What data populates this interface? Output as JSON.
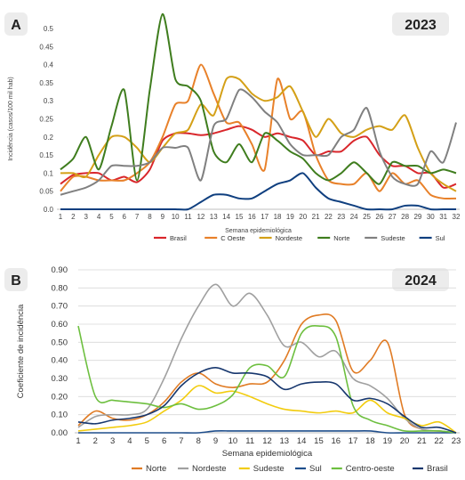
{
  "chart_data": [
    {
      "type": "line",
      "panel": "A",
      "year": "2023",
      "xlabel": "Semana epidemiológica",
      "ylabel": "Incidência (casos/100 mil hab)",
      "x": [
        1,
        2,
        3,
        4,
        5,
        6,
        7,
        8,
        9,
        10,
        11,
        12,
        13,
        14,
        15,
        16,
        17,
        18,
        19,
        20,
        21,
        22,
        23,
        24,
        25,
        26,
        27,
        28,
        29,
        30,
        31,
        32
      ],
      "ylim": [
        0,
        0.5
      ],
      "yticks": [
        "0.0",
        "0.05",
        "0.1",
        "0.15",
        "0.2",
        "0.25",
        "0.3",
        "0.35",
        "0.4",
        "0.45",
        "0.5"
      ],
      "legend_position": "bottom",
      "series": [
        {
          "name": "Brasil",
          "color": "#d9262b",
          "values": [
            0.07,
            0.095,
            0.1,
            0.1,
            0.08,
            0.09,
            0.075,
            0.11,
            0.19,
            0.21,
            0.21,
            0.205,
            0.21,
            0.22,
            0.23,
            0.22,
            0.2,
            0.21,
            0.2,
            0.19,
            0.15,
            0.16,
            0.16,
            0.19,
            0.2,
            0.15,
            0.12,
            0.12,
            0.1,
            0.1,
            0.06,
            0.07
          ]
        },
        {
          "name": "C Oeste",
          "color": "#e8812a",
          "values": [
            0.05,
            0.09,
            0.09,
            0.08,
            0.08,
            0.08,
            0.1,
            0.13,
            0.2,
            0.29,
            0.3,
            0.4,
            0.32,
            0.24,
            0.24,
            0.18,
            0.11,
            0.36,
            0.25,
            0.27,
            0.15,
            0.08,
            0.07,
            0.07,
            0.1,
            0.05,
            0.1,
            0.07,
            0.08,
            0.04,
            0.03,
            0.03
          ]
        },
        {
          "name": "Nordeste",
          "color": "#d4a017",
          "values": [
            0.1,
            0.1,
            0.09,
            0.15,
            0.2,
            0.2,
            0.17,
            0.13,
            0.17,
            0.21,
            0.22,
            0.29,
            0.26,
            0.36,
            0.36,
            0.32,
            0.3,
            0.31,
            0.34,
            0.27,
            0.2,
            0.25,
            0.21,
            0.2,
            0.22,
            0.23,
            0.22,
            0.26,
            0.17,
            0.1,
            0.07,
            0.05
          ]
        },
        {
          "name": "Norte",
          "color": "#3f7d1e",
          "values": [
            0.11,
            0.14,
            0.2,
            0.11,
            0.23,
            0.33,
            0.08,
            0.33,
            0.54,
            0.36,
            0.34,
            0.3,
            0.16,
            0.13,
            0.18,
            0.13,
            0.21,
            0.19,
            0.16,
            0.14,
            0.1,
            0.08,
            0.1,
            0.13,
            0.1,
            0.07,
            0.13,
            0.12,
            0.12,
            0.1,
            0.11,
            0.1
          ]
        },
        {
          "name": "Sudeste",
          "color": "#808080",
          "values": [
            0.04,
            0.05,
            0.06,
            0.08,
            0.12,
            0.12,
            0.12,
            0.13,
            0.17,
            0.17,
            0.17,
            0.08,
            0.23,
            0.25,
            0.33,
            0.31,
            0.27,
            0.24,
            0.18,
            0.15,
            0.15,
            0.15,
            0.2,
            0.22,
            0.28,
            0.16,
            0.09,
            0.07,
            0.07,
            0.16,
            0.13,
            0.24
          ]
        },
        {
          "name": "Sul",
          "color": "#0f3f7f",
          "values": [
            0.0,
            0.0,
            0.0,
            0.0,
            0.0,
            0.0,
            0.0,
            0.0,
            0.0,
            0.0,
            0.0,
            0.02,
            0.04,
            0.04,
            0.03,
            0.03,
            0.05,
            0.07,
            0.08,
            0.1,
            0.06,
            0.03,
            0.02,
            0.01,
            0.0,
            0.0,
            0.0,
            0.01,
            0.01,
            0.0,
            0.0,
            0.0
          ]
        }
      ]
    },
    {
      "type": "line",
      "panel": "B",
      "year": "2024",
      "xlabel": "Semana epidemiológica",
      "ylabel": "Coeficiente de incidência",
      "x": [
        1,
        2,
        3,
        4,
        5,
        6,
        7,
        8,
        9,
        10,
        11,
        12,
        13,
        14,
        15,
        16,
        17,
        18,
        19,
        20,
        21,
        22,
        23
      ],
      "ylim": [
        0,
        0.9
      ],
      "yticks": [
        "0.00",
        "0.10",
        "0.20",
        "0.30",
        "0.40",
        "0.50",
        "0.60",
        "0.70",
        "0.80",
        "0.90"
      ],
      "legend_position": "bottom",
      "series": [
        {
          "name": "Norte",
          "color": "#e07b24",
          "values": [
            0.04,
            0.12,
            0.08,
            0.07,
            0.1,
            0.17,
            0.28,
            0.33,
            0.27,
            0.25,
            0.27,
            0.28,
            0.4,
            0.6,
            0.65,
            0.62,
            0.34,
            0.4,
            0.5,
            0.1,
            0.02,
            0.01,
            0.0
          ]
        },
        {
          "name": "Nordeste",
          "color": "#a0a0a0",
          "values": [
            0.03,
            0.09,
            0.1,
            0.1,
            0.13,
            0.3,
            0.52,
            0.7,
            0.82,
            0.7,
            0.77,
            0.65,
            0.48,
            0.5,
            0.42,
            0.45,
            0.3,
            0.26,
            0.19,
            0.08,
            0.02,
            0.01,
            0.0
          ]
        },
        {
          "name": "Sudeste",
          "color": "#f2cc0f",
          "values": [
            0.01,
            0.02,
            0.03,
            0.04,
            0.06,
            0.12,
            0.18,
            0.26,
            0.22,
            0.23,
            0.2,
            0.16,
            0.13,
            0.12,
            0.11,
            0.12,
            0.11,
            0.18,
            0.11,
            0.08,
            0.04,
            0.06,
            0.0
          ]
        },
        {
          "name": "Sul",
          "color": "#1f4e8c",
          "values": [
            0.0,
            0.0,
            0.0,
            0.0,
            0.0,
            0.0,
            0.0,
            0.0,
            0.01,
            0.01,
            0.01,
            0.01,
            0.01,
            0.01,
            0.01,
            0.01,
            0.01,
            0.01,
            0.0,
            0.0,
            0.0,
            0.0,
            0.0
          ]
        },
        {
          "name": "Centro-oeste",
          "color": "#6dbf3f",
          "values": [
            0.59,
            0.2,
            0.18,
            0.17,
            0.16,
            0.14,
            0.16,
            0.13,
            0.15,
            0.21,
            0.36,
            0.37,
            0.31,
            0.55,
            0.59,
            0.53,
            0.15,
            0.07,
            0.04,
            0.01,
            0.01,
            0.01,
            0.0
          ]
        },
        {
          "name": "Brasil",
          "color": "#17376e",
          "values": [
            0.06,
            0.05,
            0.07,
            0.08,
            0.1,
            0.15,
            0.26,
            0.33,
            0.36,
            0.33,
            0.33,
            0.31,
            0.24,
            0.27,
            0.28,
            0.27,
            0.18,
            0.19,
            0.16,
            0.09,
            0.03,
            0.03,
            0.0
          ]
        }
      ]
    }
  ]
}
